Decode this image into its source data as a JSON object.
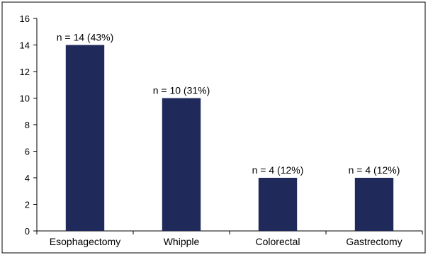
{
  "chart_data": {
    "type": "bar",
    "categories": [
      "Esophagectomy",
      "Whipple",
      "Colorectal",
      "Gastrectomy"
    ],
    "values": [
      14,
      10,
      4,
      4
    ],
    "data_labels": [
      "n = 14 (43%)",
      "n = 10 (31%)",
      "n = 4 (12%)",
      "n = 4 (12%)"
    ],
    "title": "",
    "xlabel": "",
    "ylabel": "",
    "ylim": [
      0,
      16
    ],
    "yticks": [
      0,
      2,
      4,
      6,
      8,
      10,
      12,
      14,
      16
    ],
    "grid": false,
    "legend": "none",
    "bar_color": "#1f2a5a"
  }
}
